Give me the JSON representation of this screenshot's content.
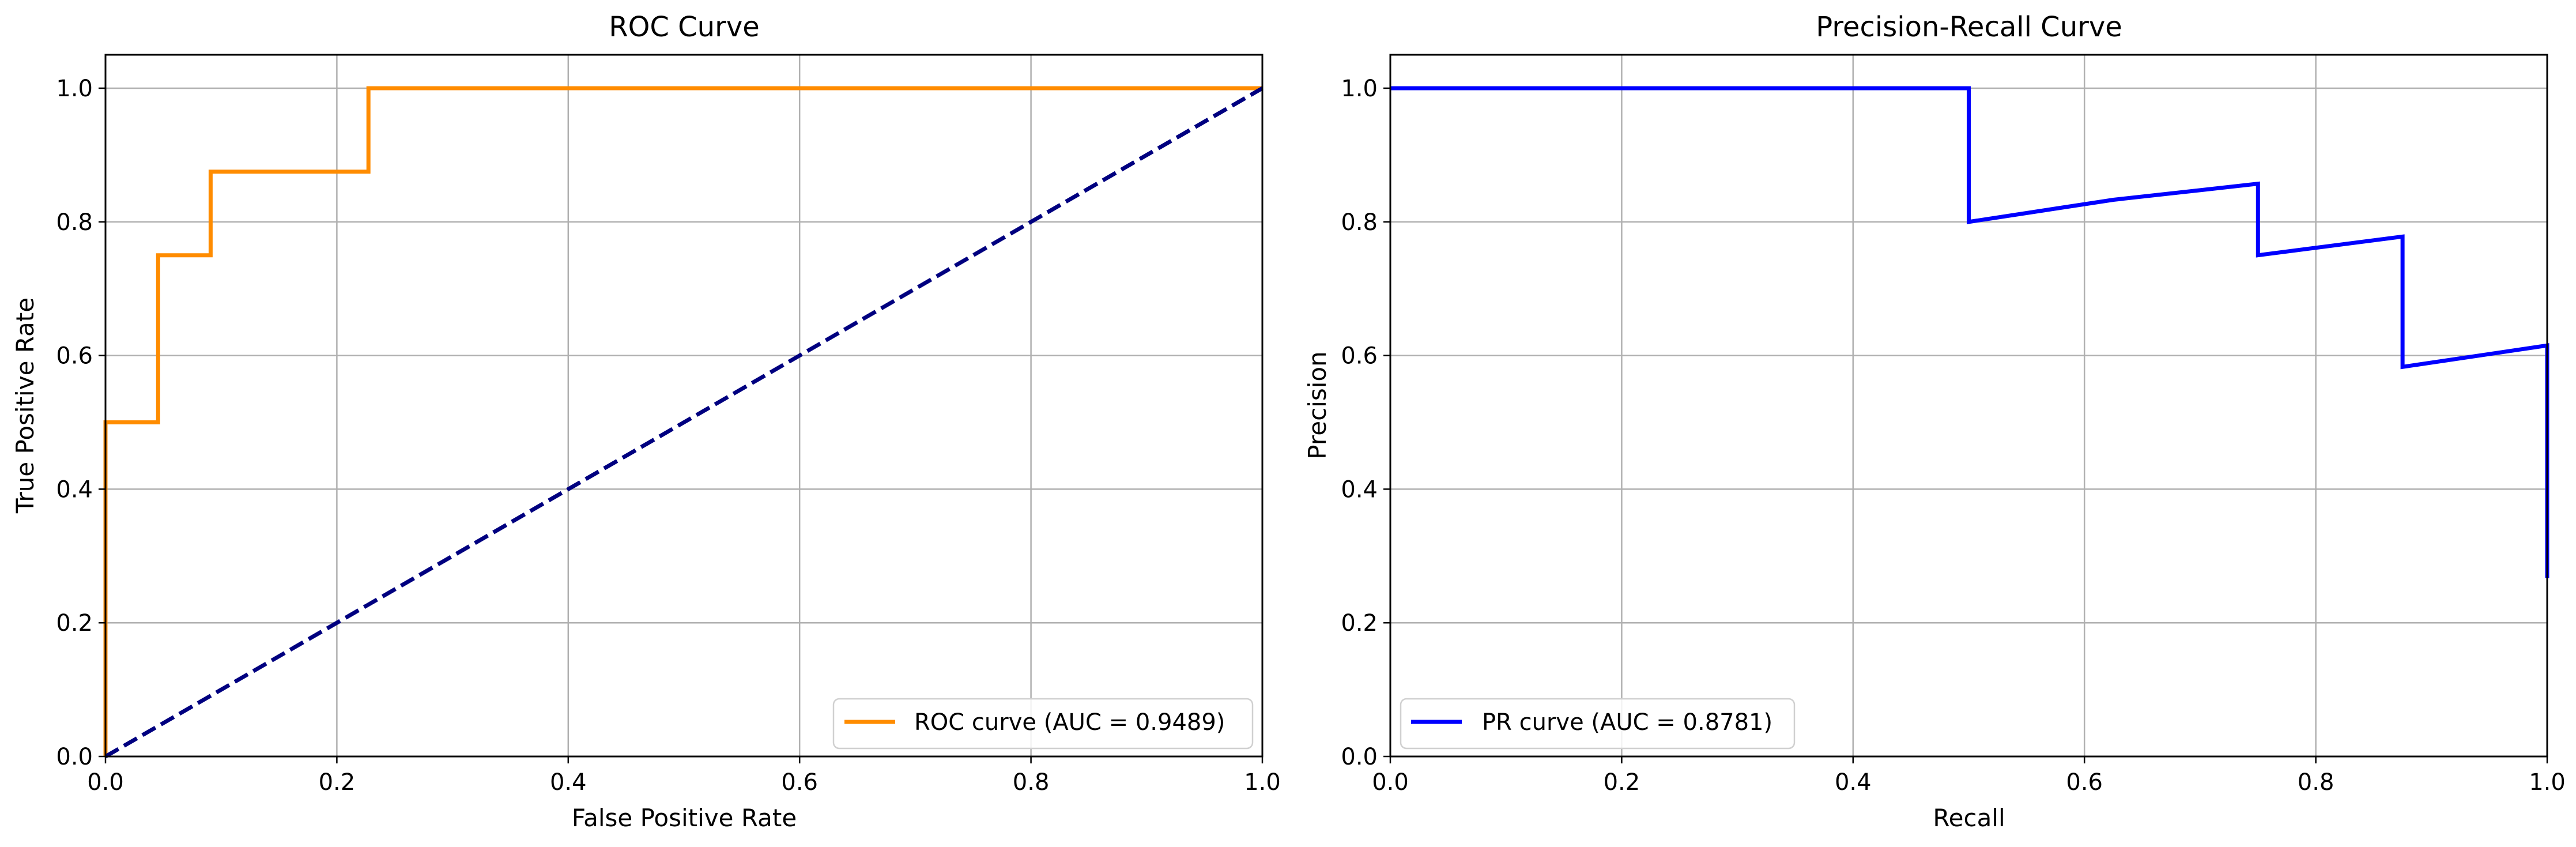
{
  "chart_data": [
    {
      "type": "line",
      "title": "ROC Curve",
      "xlabel": "False Positive Rate",
      "ylabel": "True Positive Rate",
      "xlim": [
        0,
        1
      ],
      "ylim": [
        0,
        1.05
      ],
      "xticks": [
        "0.0",
        "0.2",
        "0.4",
        "0.6",
        "0.8",
        "1.0"
      ],
      "yticks": [
        "0.0",
        "0.2",
        "0.4",
        "0.6",
        "0.8",
        "1.0"
      ],
      "grid": true,
      "legend_position": "lower-right",
      "series": [
        {
          "name": "ROC curve (AUC = 0.9489)",
          "color": "#ff8c00",
          "line_style": "solid",
          "x": [
            0,
            0,
            0,
            0.0455,
            0.0455,
            0.0909,
            0.0909,
            0.2273,
            0.2273,
            1.0
          ],
          "y": [
            0,
            0.125,
            0.5,
            0.5,
            0.75,
            0.75,
            0.875,
            0.875,
            1.0,
            1.0
          ]
        },
        {
          "color": "#000080",
          "line_style": "dashed",
          "x": [
            0,
            1
          ],
          "y": [
            0,
            1
          ]
        }
      ]
    },
    {
      "type": "line",
      "title": "Precision-Recall Curve",
      "xlabel": "Recall",
      "ylabel": "Precision",
      "xlim": [
        0,
        1
      ],
      "ylim": [
        0,
        1.05
      ],
      "xticks": [
        "0.0",
        "0.2",
        "0.4",
        "0.6",
        "0.8",
        "1.0"
      ],
      "yticks": [
        "0.0",
        "0.2",
        "0.4",
        "0.6",
        "0.8",
        "1.0"
      ],
      "grid": true,
      "legend_position": "lower-left",
      "series": [
        {
          "name": "PR curve (AUC = 0.8781)",
          "color": "#0000ff",
          "line_style": "solid",
          "x": [
            0,
            0.5,
            0.5,
            0.625,
            0.75,
            0.75,
            0.875,
            0.875,
            1.0,
            1.0
          ],
          "y": [
            1.0,
            1.0,
            0.8,
            0.833,
            0.857,
            0.75,
            0.778,
            0.583,
            0.615,
            0.267
          ]
        }
      ]
    }
  ]
}
